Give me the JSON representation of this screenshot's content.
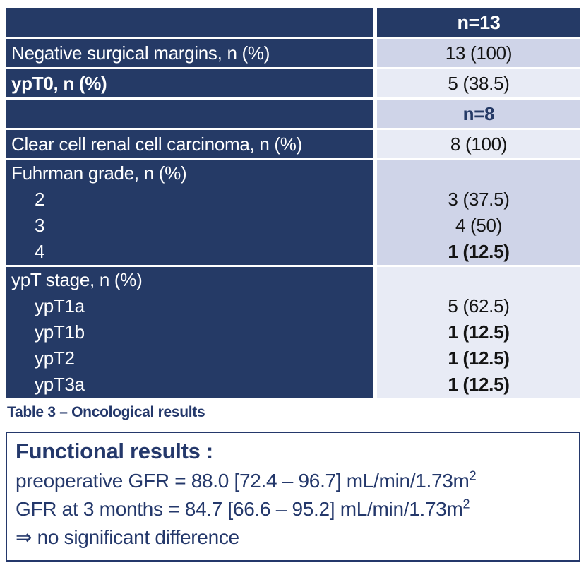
{
  "colors": {
    "navy": "#253a66",
    "lavender_dark": "#cfd4e8",
    "lavender_light": "#e8ebf5",
    "value_text": "#141414",
    "white": "#ffffff"
  },
  "table": {
    "blocks": [
      {
        "right_bg": "dark",
        "lines": [
          {
            "label": "",
            "value": "n=13",
            "value_style": "header"
          }
        ]
      },
      {
        "right_bg": "a",
        "lines": [
          {
            "label": "Negative surgical margins, n (%)",
            "value": "13 (100)"
          }
        ]
      },
      {
        "right_bg": "b",
        "lines": [
          {
            "label": "ypT0, n (%)",
            "label_bold": true,
            "value": "5 (38.5)"
          }
        ]
      },
      {
        "right_bg": "a",
        "lines": [
          {
            "label": "",
            "value": "n=8",
            "value_bold": true,
            "value_navy": true
          }
        ]
      },
      {
        "right_bg": "b",
        "lines": [
          {
            "label": "Clear cell renal cell carcinoma, n (%)",
            "value": "8 (100)"
          }
        ]
      },
      {
        "right_bg": "a",
        "lines": [
          {
            "label": "Fuhrman grade, n (%)",
            "value": ""
          },
          {
            "label": "2",
            "indent": true,
            "value": "3 (37.5)"
          },
          {
            "label": "3",
            "indent": true,
            "value": "4 (50)"
          },
          {
            "label": "4",
            "indent": true,
            "value": "1 (12.5)",
            "value_bold": true
          }
        ]
      },
      {
        "right_bg": "b",
        "lines": [
          {
            "label": "ypT stage, n (%)",
            "value": ""
          },
          {
            "label": "ypT1a",
            "indent": true,
            "value": "5 (62.5)"
          },
          {
            "label": "ypT1b",
            "indent": true,
            "value": "1 (12.5)",
            "value_bold": true
          },
          {
            "label": "ypT2",
            "indent": true,
            "value": "1 (12.5)",
            "value_bold": true
          },
          {
            "label": "ypT3a",
            "indent": true,
            "value": "1 (12.5)",
            "value_bold": true
          }
        ]
      }
    ]
  },
  "caption": "Table 3 – Oncological results",
  "functional_box": {
    "title": "Functional results :",
    "lines": [
      {
        "text": "preoperative GFR = 88.0 [72.4 – 96.7] mL/min/1.73m",
        "sup": "2"
      },
      {
        "text": "GFR at 3 months = 84.7 [66.6 – 95.2] mL/min/1.73m",
        "sup": "2"
      },
      {
        "text": "⇒ no significant difference"
      }
    ]
  }
}
